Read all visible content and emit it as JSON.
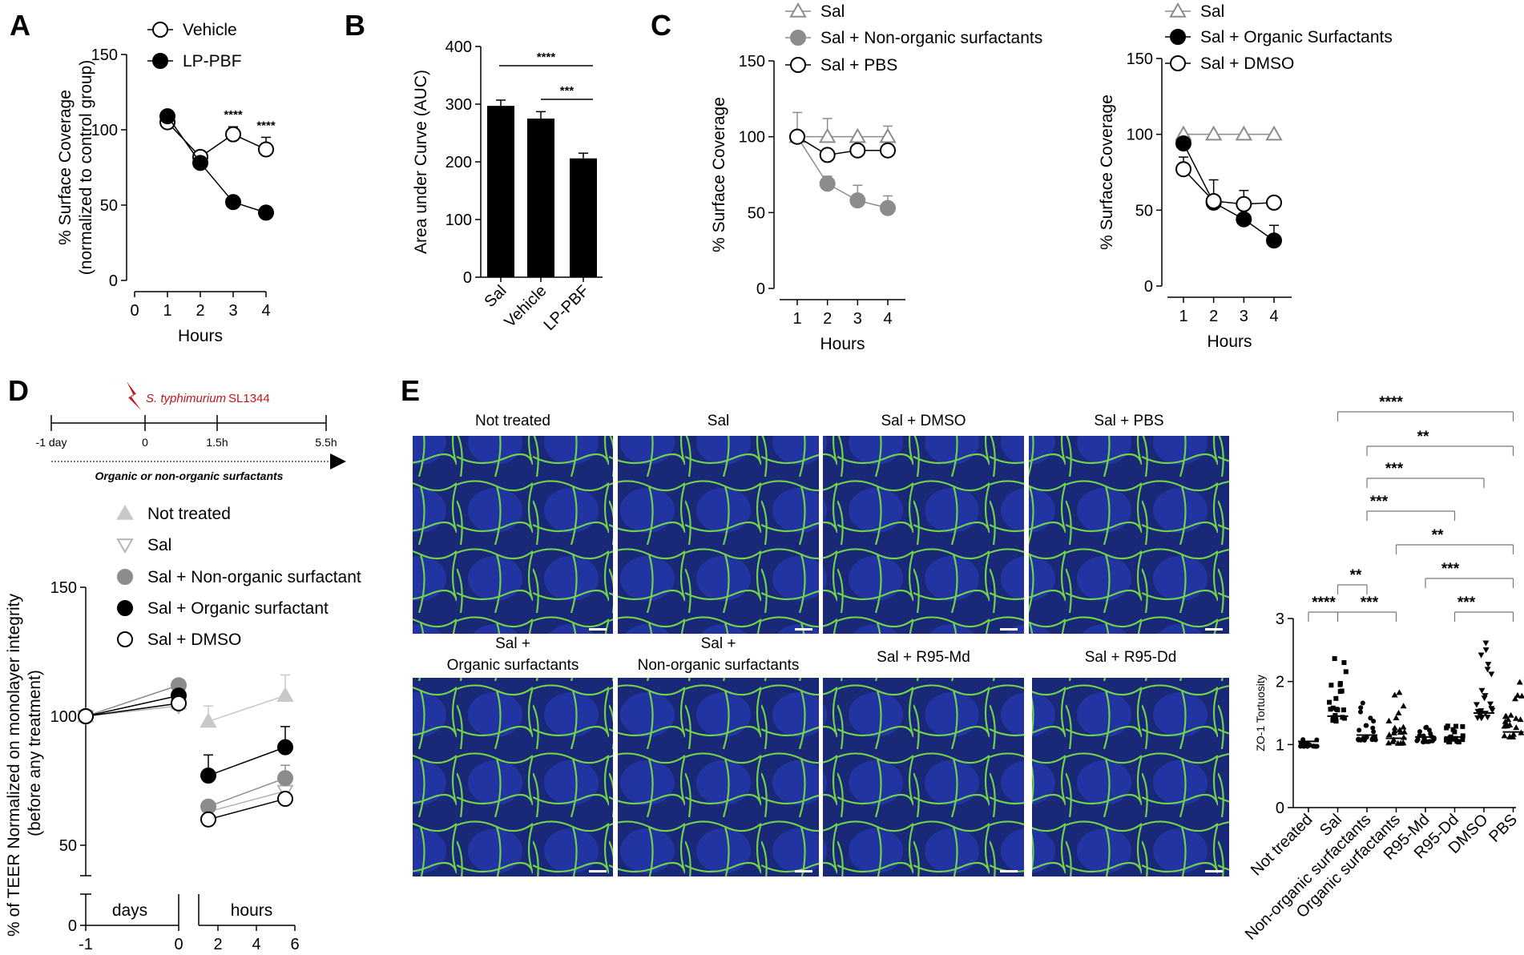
{
  "panel_letters": {
    "A": "A",
    "B": "B",
    "C": "C",
    "D": "D",
    "E": "E"
  },
  "colors": {
    "black": "#000000",
    "gray": "#8c8c8c",
    "light_gray": "#b4b4b4",
    "lighter_gray": "#c8c8c8",
    "cell_blue": "#1f2f8c",
    "junction_green": "#6fd24a"
  },
  "chart_data": [
    {
      "id": "A",
      "type": "line",
      "xlabel": "Hours",
      "ylabel": "% Surface Coverage",
      "ylabel2": "(normalized to control group)",
      "xlim": [
        0,
        4
      ],
      "ylim": [
        0,
        150
      ],
      "xticks": [
        "0",
        "1",
        "2",
        "3",
        "4"
      ],
      "yticks": [
        "0",
        "50",
        "100",
        "150"
      ],
      "series": [
        {
          "name": "Vehicle",
          "marker": "open-circle",
          "x": [
            1,
            2,
            3,
            4
          ],
          "y": [
            105,
            82,
            97,
            87
          ],
          "err": [
            0,
            0,
            5,
            8
          ]
        },
        {
          "name": "LP-PBF",
          "marker": "filled-circle",
          "x": [
            1,
            2,
            3,
            4
          ],
          "y": [
            109,
            78,
            52,
            45
          ],
          "err": [
            0,
            0,
            0,
            0
          ]
        }
      ],
      "annotations": [
        {
          "x": 3,
          "text": "****"
        },
        {
          "x": 4,
          "text": "****"
        }
      ]
    },
    {
      "id": "B",
      "type": "bar",
      "ylabel": "Area under Curve (AUC)",
      "ylim": [
        0,
        400
      ],
      "yticks": [
        "0",
        "100",
        "200",
        "300",
        "400"
      ],
      "categories": [
        "Sal",
        "Vehicle",
        "LP-PBF"
      ],
      "values": [
        297,
        275,
        206
      ],
      "err": [
        10,
        12,
        9
      ],
      "significance": [
        {
          "from": "Sal",
          "to": "LP-PBF",
          "text": "****"
        },
        {
          "from": "Vehicle",
          "to": "LP-PBF",
          "text": "***"
        }
      ]
    },
    {
      "id": "C1",
      "type": "line",
      "xlabel": "Hours",
      "ylabel": "% Surface Coverage",
      "xlim": [
        1,
        4
      ],
      "ylim": [
        0,
        150
      ],
      "xticks": [
        "1",
        "2",
        "3",
        "4"
      ],
      "yticks": [
        "0",
        "50",
        "100",
        "150"
      ],
      "series": [
        {
          "name": "Sal",
          "marker": "open-triangle",
          "x": [
            1,
            2,
            3,
            4
          ],
          "y": [
            100,
            100,
            100,
            100
          ],
          "err": [
            16,
            12,
            0,
            7
          ]
        },
        {
          "name": "Sal + Non-organic surfactants",
          "marker": "gray-circle",
          "x": [
            1,
            2,
            3,
            4
          ],
          "y": [
            100,
            69,
            58,
            53
          ],
          "err": [
            0,
            5,
            10,
            8
          ]
        },
        {
          "name": "Sal + PBS",
          "marker": "open-circle",
          "x": [
            1,
            2,
            3,
            4
          ],
          "y": [
            100,
            88,
            91,
            91
          ],
          "err": [
            0,
            0,
            0,
            0
          ]
        }
      ]
    },
    {
      "id": "C2",
      "type": "line",
      "xlabel": "Hours",
      "ylabel": "% Surface Coverage",
      "xlim": [
        1,
        4
      ],
      "ylim": [
        0,
        150
      ],
      "xticks": [
        "1",
        "2",
        "3",
        "4"
      ],
      "yticks": [
        "0",
        "50",
        "100",
        "150"
      ],
      "series": [
        {
          "name": "Sal",
          "marker": "open-triangle",
          "x": [
            1,
            2,
            3,
            4
          ],
          "y": [
            100,
            100,
            100,
            100
          ],
          "err": [
            0,
            0,
            0,
            0
          ]
        },
        {
          "name": "Sal + Organic Surfactants",
          "marker": "filled-circle",
          "x": [
            1,
            2,
            3,
            4
          ],
          "y": [
            94,
            55,
            44,
            30
          ],
          "err": [
            0,
            15,
            0,
            10
          ]
        },
        {
          "name": "Sal + DMSO",
          "marker": "open-circle",
          "x": [
            1,
            2,
            3,
            4
          ],
          "y": [
            77,
            56,
            54,
            55
          ],
          "err": [
            8,
            0,
            9,
            0
          ]
        }
      ]
    },
    {
      "id": "D",
      "type": "line",
      "ylabel": "% of TEER Normalized on monolayer integrity",
      "ylabel2": "(before any treatment)",
      "ylim": [
        0,
        150
      ],
      "yticks": [
        "0",
        "50",
        "100",
        "150"
      ],
      "x_segment_labels": [
        "days",
        "hours"
      ],
      "xticks_days": [
        "-1",
        "0"
      ],
      "xticks_hours": [
        "2",
        "4",
        "6"
      ],
      "series": [
        {
          "name": "Not treated",
          "marker": "gray-triangle",
          "days_x": [
            -1,
            0
          ],
          "days_y": [
            100,
            105
          ],
          "hours_x": [
            1.5,
            5.5
          ],
          "hours_y": [
            98,
            108
          ],
          "hours_err": [
            6,
            8
          ]
        },
        {
          "name": "Sal",
          "marker": "open-down-triangle",
          "days_x": [
            -1,
            0
          ],
          "days_y": [
            100,
            104
          ],
          "hours_x": [
            1.5,
            5.5
          ],
          "hours_y": [
            63,
            71
          ],
          "hours_err": [
            0,
            0
          ]
        },
        {
          "name": "Sal + Non-organic surfactant",
          "marker": "gray-circle",
          "days_x": [
            -1,
            0
          ],
          "days_y": [
            100,
            112
          ],
          "hours_x": [
            1.5,
            5.5
          ],
          "hours_y": [
            65,
            76
          ],
          "hours_err": [
            0,
            5
          ]
        },
        {
          "name": "Sal + Organic surfactant",
          "marker": "filled-circle",
          "days_x": [
            -1,
            0
          ],
          "days_y": [
            100,
            108
          ],
          "hours_x": [
            1.5,
            5.5
          ],
          "hours_y": [
            77,
            88
          ],
          "hours_err": [
            8,
            8
          ]
        },
        {
          "name": "Sal + DMSO",
          "marker": "open-circle",
          "days_x": [
            -1,
            0
          ],
          "days_y": [
            100,
            105
          ],
          "hours_x": [
            1.5,
            5.5
          ],
          "hours_y": [
            60,
            68
          ],
          "hours_err": [
            0,
            0
          ]
        }
      ]
    },
    {
      "id": "E",
      "type": "scatter",
      "ylabel": "ZO-1 Tortuosity",
      "ylim": [
        0,
        3
      ],
      "yticks": [
        "0",
        "1",
        "2",
        "3"
      ],
      "categories": [
        "Not treated",
        "Sal",
        "Non-organic surfactants",
        "Organic surfactants",
        "R95-Md",
        "R95-Dd",
        "DMSO",
        "PBS"
      ],
      "medians": [
        1.05,
        1.45,
        1.15,
        1.1,
        1.12,
        1.12,
        1.5,
        1.2
      ],
      "spread": [
        0.12,
        1.1,
        0.75,
        1.0,
        0.25,
        0.32,
        1.3,
        0.95
      ],
      "significance": [
        {
          "from": 1,
          "to": 7,
          "text": "****"
        },
        {
          "from": 2,
          "to": 7,
          "text": "**"
        },
        {
          "from": 2,
          "to": 6,
          "text": "***"
        },
        {
          "from": 2,
          "to": 5,
          "text": "***"
        },
        {
          "from": 3,
          "to": 7,
          "text": "**"
        },
        {
          "from": 4,
          "to": 7,
          "text": "***"
        },
        {
          "from": 0,
          "to": 1,
          "text": "****"
        },
        {
          "from": 1,
          "to": 2,
          "text": "**"
        },
        {
          "from": 1,
          "to": 3,
          "text": "***"
        },
        {
          "from": 5,
          "to": 7,
          "text": "***"
        }
      ]
    }
  ],
  "panel_D_timeline": {
    "ticks": [
      "-1 day",
      "0",
      "1.5h",
      "5.5h"
    ],
    "pathogen_italic": "S. typhimurium",
    "pathogen_strain": "SL1344",
    "arrow_label": "Organic or non-organic surfactants"
  },
  "panel_E_images": {
    "row1": [
      "Not treated",
      "Sal",
      "Sal + DMSO",
      "Sal + PBS"
    ],
    "row2_line1": [
      "Sal +",
      "Sal +",
      "Sal + R95-Md",
      "Sal + R95-Dd"
    ],
    "row2_line2": [
      "Organic surfactants",
      "Non-organic surfactants",
      "",
      ""
    ]
  }
}
